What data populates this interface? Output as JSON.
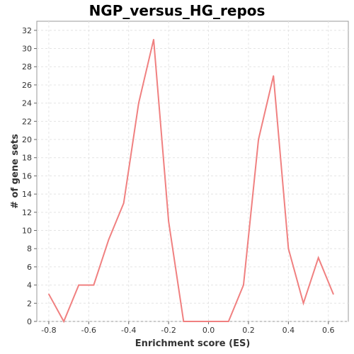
{
  "chart_data": {
    "type": "line",
    "title": "NGP_versus_HG_repos",
    "xlabel": "Enrichment score (ES)",
    "ylabel": "# of gene sets",
    "xlim": [
      -0.86,
      0.7
    ],
    "ylim": [
      0,
      33
    ],
    "xticks": [
      "-0.8",
      "-0.6",
      "-0.4",
      "-0.2",
      "0.0",
      "0.2",
      "0.4",
      "0.6"
    ],
    "yticks": [
      "0",
      "2",
      "4",
      "6",
      "8",
      "10",
      "12",
      "14",
      "16",
      "18",
      "20",
      "22",
      "24",
      "26",
      "28",
      "30",
      "32"
    ],
    "grid": true,
    "line_color": "#f08080",
    "series": [
      {
        "x": [
          -0.8,
          -0.725,
          -0.65,
          -0.575,
          -0.5,
          -0.425,
          -0.35,
          -0.275,
          -0.2,
          -0.125,
          -0.05,
          0.025,
          0.1,
          0.175,
          0.25,
          0.325,
          0.4,
          0.475,
          0.55,
          0.625
        ],
        "values": [
          3,
          0,
          4,
          4,
          9,
          13,
          24,
          31,
          11,
          0,
          0,
          0,
          0,
          4,
          20,
          27,
          8,
          2,
          7,
          3
        ]
      }
    ]
  }
}
